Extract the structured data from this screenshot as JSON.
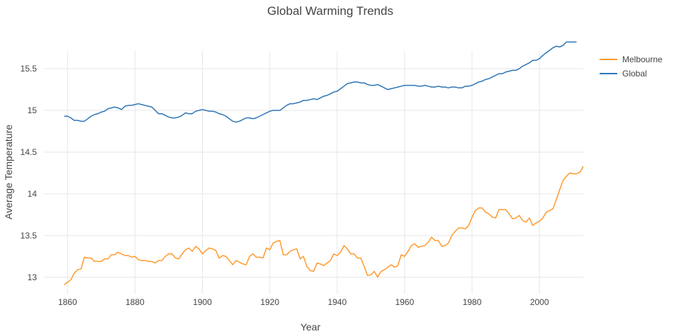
{
  "chart_data": {
    "type": "line",
    "title": "Global Warming Trends",
    "xlabel": "Year",
    "ylabel": "Average Temperature",
    "xlim": [
      1853,
      2013
    ],
    "ylim": [
      12.82,
      15.95
    ],
    "x_ticks": [
      1860,
      1880,
      1900,
      1920,
      1940,
      1960,
      1980,
      2000
    ],
    "x_tick_labels": [
      "1860",
      "1880",
      "1900",
      "1920",
      "1940",
      "1960",
      "1980",
      "2000"
    ],
    "y_ticks": [
      13,
      13.5,
      14,
      14.5,
      15,
      15.5
    ],
    "y_tick_labels": [
      "13",
      "13.5",
      "14",
      "14.5",
      "15",
      "15.5"
    ],
    "grid": true,
    "legend_position": "top-right",
    "x_start": 1859,
    "series": [
      {
        "name": "Melbourne",
        "color": "#ff9a2e",
        "values": [
          12.91,
          12.94,
          12.97,
          13.05,
          13.09,
          13.1,
          13.24,
          13.23,
          13.23,
          13.19,
          13.19,
          13.19,
          13.22,
          13.22,
          13.27,
          13.27,
          13.3,
          13.28,
          13.26,
          13.26,
          13.24,
          13.25,
          13.21,
          13.2,
          13.2,
          13.19,
          13.19,
          13.17,
          13.2,
          13.2,
          13.25,
          13.28,
          13.28,
          13.23,
          13.22,
          13.28,
          13.33,
          13.35,
          13.31,
          13.37,
          13.34,
          13.28,
          13.32,
          13.35,
          13.34,
          13.32,
          13.23,
          13.26,
          13.25,
          13.2,
          13.15,
          13.2,
          13.18,
          13.16,
          13.15,
          13.25,
          13.28,
          13.24,
          13.24,
          13.23,
          13.35,
          13.33,
          13.41,
          13.43,
          13.44,
          13.27,
          13.27,
          13.31,
          13.33,
          13.34,
          13.22,
          13.25,
          13.13,
          13.08,
          13.07,
          13.17,
          13.16,
          13.14,
          13.17,
          13.2,
          13.28,
          13.26,
          13.3,
          13.38,
          13.34,
          13.28,
          13.28,
          13.23,
          13.23,
          13.13,
          13.02,
          13.03,
          13.07,
          13.0,
          13.07,
          13.09,
          13.12,
          13.15,
          13.12,
          13.14,
          13.27,
          13.25,
          13.31,
          13.38,
          13.4,
          13.36,
          13.37,
          13.38,
          13.42,
          13.48,
          13.44,
          13.44,
          13.37,
          13.38,
          13.41,
          13.5,
          13.55,
          13.59,
          13.59,
          13.58,
          13.62,
          13.72,
          13.8,
          13.83,
          13.83,
          13.78,
          13.76,
          13.72,
          13.71,
          13.81,
          13.81,
          13.81,
          13.76,
          13.7,
          13.71,
          13.74,
          13.68,
          13.66,
          13.71,
          13.62,
          13.65,
          13.67,
          13.71,
          13.78,
          13.8,
          13.82,
          13.93,
          14.05,
          14.16,
          14.21,
          14.25,
          14.24,
          14.24,
          14.26,
          14.33
        ]
      },
      {
        "name": "Global",
        "color": "#2e76b6",
        "values": [
          14.93,
          14.93,
          14.91,
          14.88,
          14.88,
          14.87,
          14.87,
          14.9,
          14.93,
          14.95,
          14.96,
          14.98,
          14.99,
          15.02,
          15.03,
          15.04,
          15.03,
          15.01,
          15.05,
          15.06,
          15.06,
          15.07,
          15.08,
          15.07,
          15.06,
          15.05,
          15.04,
          15.0,
          14.96,
          14.96,
          14.94,
          14.92,
          14.91,
          14.91,
          14.92,
          14.94,
          14.97,
          14.96,
          14.96,
          14.99,
          15.0,
          15.01,
          15.0,
          14.99,
          14.99,
          14.98,
          14.96,
          14.95,
          14.93,
          14.9,
          14.87,
          14.86,
          14.87,
          14.89,
          14.91,
          14.91,
          14.9,
          14.91,
          14.93,
          14.95,
          14.97,
          14.99,
          15.0,
          15.0,
          15.0,
          15.03,
          15.06,
          15.08,
          15.08,
          15.09,
          15.1,
          15.12,
          15.12,
          15.13,
          15.14,
          15.13,
          15.15,
          15.17,
          15.18,
          15.2,
          15.22,
          15.23,
          15.26,
          15.29,
          15.32,
          15.33,
          15.34,
          15.34,
          15.33,
          15.33,
          15.31,
          15.3,
          15.3,
          15.31,
          15.29,
          15.27,
          15.25,
          15.26,
          15.27,
          15.28,
          15.29,
          15.3,
          15.3,
          15.3,
          15.3,
          15.29,
          15.29,
          15.3,
          15.29,
          15.28,
          15.28,
          15.29,
          15.28,
          15.28,
          15.27,
          15.28,
          15.28,
          15.27,
          15.27,
          15.29,
          15.29,
          15.3,
          15.32,
          15.34,
          15.35,
          15.37,
          15.38,
          15.4,
          15.42,
          15.44,
          15.44,
          15.46,
          15.47,
          15.48,
          15.48,
          15.5,
          15.53,
          15.55,
          15.57,
          15.6,
          15.6,
          15.62,
          15.66,
          15.69,
          15.72,
          15.75,
          15.77,
          15.76,
          15.78,
          15.82,
          15.82,
          15.82,
          15.82
        ]
      }
    ]
  }
}
